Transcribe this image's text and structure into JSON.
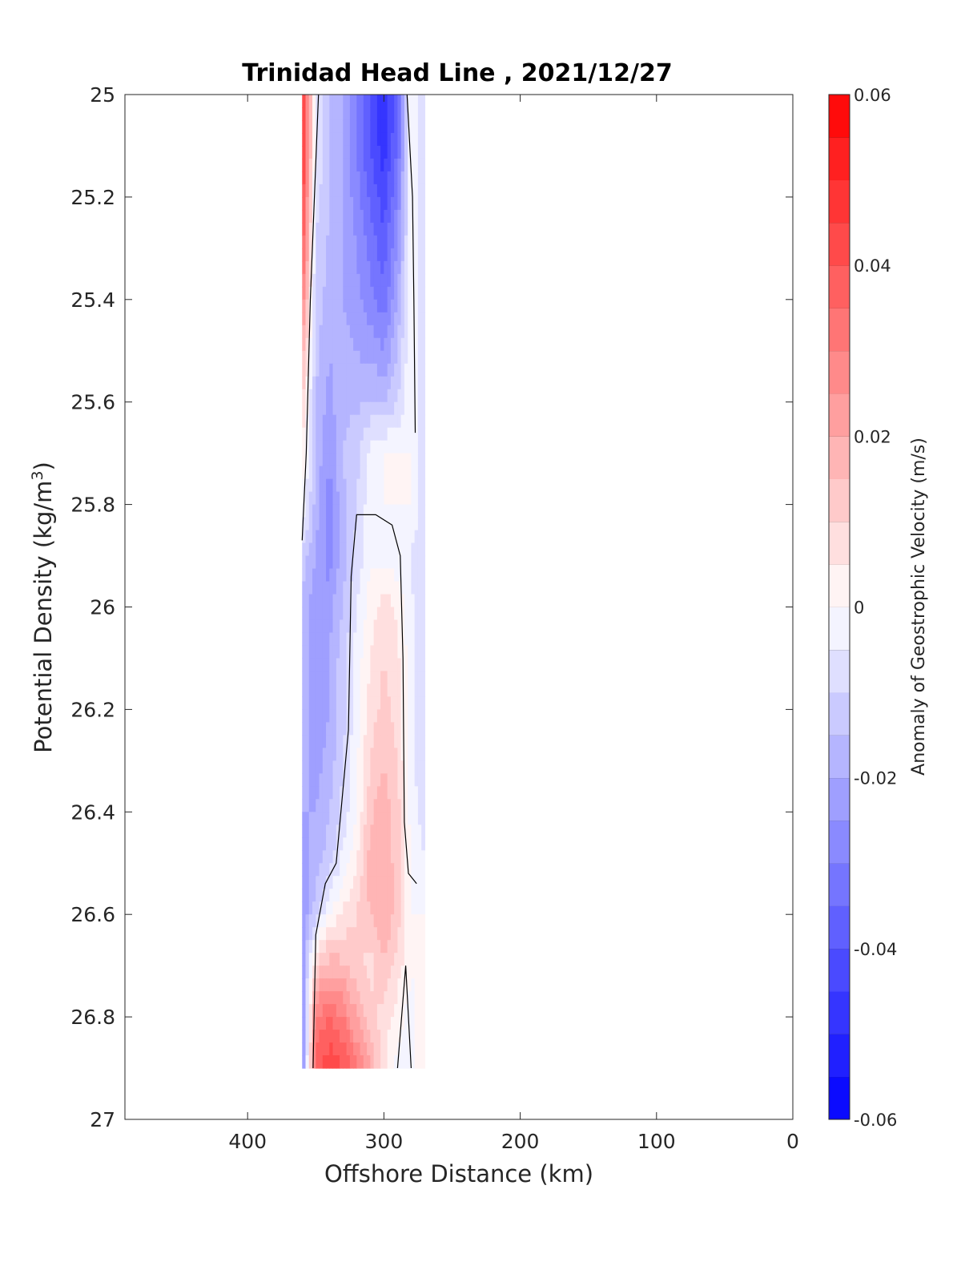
{
  "chart_data": {
    "type": "heatmap",
    "title": "Trinidad Head Line , 2021/12/27",
    "xlabel": "Offshore Distance (km)",
    "ylabel": {
      "prefix": "Potential Density (kg/m",
      "sup": "3",
      "suffix": ")"
    },
    "xlim": [
      490,
      0
    ],
    "ylim": [
      27,
      25
    ],
    "x_reversed": true,
    "y_reversed": true,
    "xticks": [
      400,
      300,
      200,
      100,
      0
    ],
    "xtick_labels": [
      "400",
      "300",
      "200",
      "100",
      "0"
    ],
    "yticks": [
      25,
      25.2,
      25.4,
      25.6,
      25.8,
      26,
      26.2,
      26.4,
      26.6,
      26.8,
      27
    ],
    "ytick_labels": [
      "25",
      "25.2",
      "25.4",
      "25.6",
      "25.8",
      "26",
      "26.2",
      "26.4",
      "26.6",
      "26.8",
      "27"
    ],
    "colorbar": {
      "label": "Anomaly of Geostrophic Velocity (m/s)",
      "range": [
        -0.06,
        0.06
      ],
      "levels": 24,
      "ticks": [
        0.06,
        0.04,
        0.02,
        0,
        -0.02,
        -0.04,
        -0.06
      ],
      "tick_labels": [
        "0.06",
        "0.04",
        "0.02",
        "0",
        "-0.02",
        "-0.04",
        "-0.06"
      ],
      "colormap": "blue-white-red",
      "color_min": "#0000ff",
      "color_zero": "#ffffff",
      "color_max": "#ff0000"
    },
    "x": [
      360,
      350,
      340,
      330,
      320,
      310,
      300,
      290,
      280,
      270
    ],
    "y": [
      25.0,
      25.1,
      25.2,
      25.3,
      25.4,
      25.5,
      25.6,
      25.7,
      25.8,
      25.9,
      26.0,
      26.1,
      26.2,
      26.3,
      26.4,
      26.5,
      26.6,
      26.7,
      26.8,
      26.9
    ],
    "z": [
      [
        0.05,
        -0.005,
        -0.015,
        -0.02,
        -0.03,
        -0.04,
        -0.05,
        -0.035,
        0,
        -0.01
      ],
      [
        0.05,
        -0.005,
        -0.015,
        -0.02,
        -0.03,
        -0.04,
        -0.048,
        -0.035,
        0,
        -0.01
      ],
      [
        0.045,
        -0.008,
        -0.015,
        -0.02,
        -0.028,
        -0.036,
        -0.043,
        -0.03,
        0,
        -0.01
      ],
      [
        0.04,
        -0.01,
        -0.016,
        -0.02,
        -0.025,
        -0.032,
        -0.038,
        -0.025,
        0,
        -0.01
      ],
      [
        0.03,
        -0.012,
        -0.018,
        -0.02,
        -0.023,
        -0.028,
        -0.033,
        -0.02,
        0,
        -0.01
      ],
      [
        0.02,
        -0.013,
        -0.02,
        -0.018,
        -0.02,
        -0.022,
        -0.025,
        -0.015,
        0,
        -0.01
      ],
      [
        0.01,
        -0.015,
        -0.022,
        -0.016,
        -0.016,
        -0.014,
        -0.015,
        -0.01,
        0,
        -0.01
      ],
      [
        0.005,
        -0.016,
        -0.025,
        -0.015,
        -0.012,
        -0.003,
        0,
        0,
        0,
        -0.01
      ],
      [
        0,
        -0.017,
        -0.028,
        -0.016,
        -0.01,
        -0.002,
        0,
        0,
        0,
        -0.01
      ],
      [
        -0.012,
        -0.02,
        -0.028,
        -0.017,
        -0.008,
        -0.001,
        -0.002,
        -0.004,
        -0.005,
        -0.01
      ],
      [
        -0.015,
        -0.025,
        -0.022,
        -0.015,
        -0.005,
        0.002,
        0.008,
        0.004,
        -0.004,
        -0.01
      ],
      [
        -0.015,
        -0.025,
        -0.02,
        -0.012,
        -0.003,
        0.005,
        0.01,
        0.006,
        -0.003,
        -0.01
      ],
      [
        -0.016,
        -0.025,
        -0.02,
        -0.012,
        -0.002,
        0.007,
        0.012,
        0.008,
        -0.003,
        -0.01
      ],
      [
        -0.018,
        -0.022,
        -0.018,
        -0.01,
        -0.001,
        0.01,
        0.015,
        0.01,
        -0.003,
        -0.01
      ],
      [
        -0.02,
        -0.02,
        -0.015,
        -0.008,
        0,
        0.014,
        0.018,
        0.012,
        -0.002,
        -0.008
      ],
      [
        -0.022,
        -0.018,
        -0.012,
        -0.003,
        0.004,
        0.018,
        0.02,
        0.012,
        0,
        -0.005
      ],
      [
        -0.025,
        -0.012,
        0,
        0.006,
        0.01,
        0.015,
        0.02,
        0.012,
        0,
        0
      ],
      [
        -0.025,
        0.012,
        0.018,
        0.016,
        0.012,
        0.008,
        0.015,
        0.008,
        0,
        0.004
      ],
      [
        -0.028,
        0.03,
        0.035,
        0.03,
        0.02,
        0.012,
        0.008,
        0.002,
        -0.002,
        0.006
      ],
      [
        -0.03,
        0.038,
        0.044,
        0.04,
        0.03,
        0.02,
        0.006,
        -0.002,
        -0.003,
        0.006
      ]
    ],
    "contours": [
      {
        "level": 0,
        "points": [
          [
            360,
            25.87
          ],
          [
            357,
            25.7
          ],
          [
            354,
            25.4
          ],
          [
            351,
            25.2
          ],
          [
            348,
            25.0
          ]
        ]
      },
      {
        "level": 0,
        "points": [
          [
            283,
            25.0
          ],
          [
            279,
            25.2
          ],
          [
            278,
            25.4
          ],
          [
            277,
            25.66
          ]
        ]
      },
      {
        "level": 0,
        "points": [
          [
            352,
            26.9
          ],
          [
            350,
            26.64
          ],
          [
            343,
            26.54
          ],
          [
            335,
            26.5
          ],
          [
            326,
            26.24
          ],
          [
            324,
            25.94
          ],
          [
            320,
            25.82
          ],
          [
            306,
            25.82
          ],
          [
            294,
            25.84
          ],
          [
            288,
            25.9
          ],
          [
            286,
            26.1
          ],
          [
            285,
            26.42
          ],
          [
            282,
            26.52
          ],
          [
            276,
            26.54
          ]
        ]
      },
      {
        "level": 0,
        "points": [
          [
            290,
            26.9
          ],
          [
            284,
            26.7
          ],
          [
            280,
            26.9
          ]
        ]
      }
    ]
  }
}
